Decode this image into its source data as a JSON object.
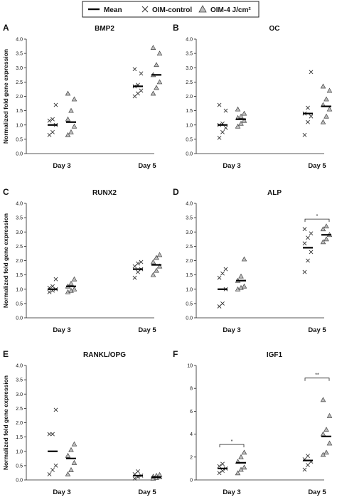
{
  "legend": {
    "mean_label": "Mean",
    "control_label": "OIM-control",
    "treated_label": "OIM-4 J/cm²"
  },
  "chart_data": [
    {
      "type": "scatter",
      "panel": "A",
      "title": "BMP2",
      "ylabel": "Normalized fold gene expression",
      "ylim": [
        0,
        4.0
      ],
      "yticks": [
        "0.0",
        "0.5",
        "1.0",
        "1.5",
        "2.0",
        "2.5",
        "3.0",
        "3.5",
        "4.0"
      ],
      "categories": [
        "Day 3",
        "Day 5"
      ],
      "series": [
        {
          "name": "OIM-control",
          "marker": "x",
          "values": [
            [
              0.65,
              0.75,
              1.0,
              1.15,
              1.2,
              1.7
            ],
            [
              2.0,
              2.1,
              2.2,
              2.35,
              2.4,
              2.8,
              2.95
            ]
          ]
        },
        {
          "name": "OIM-4 J/cm²",
          "marker": "triangle",
          "values": [
            [
              0.65,
              0.75,
              0.95,
              1.2,
              1.5,
              1.9,
              2.1
            ],
            [
              2.1,
              2.3,
              2.5,
              2.75,
              3.1,
              3.5,
              3.7
            ]
          ]
        }
      ],
      "means": [
        [
          1.0,
          1.1
        ],
        [
          2.35,
          2.75
        ]
      ],
      "significance": []
    },
    {
      "type": "scatter",
      "panel": "B",
      "title": "OC",
      "ylabel": "",
      "ylim": [
        0,
        4.0
      ],
      "yticks": [
        "0.0",
        "0.5",
        "1.0",
        "1.5",
        "2.0",
        "2.5",
        "3.0",
        "3.5",
        "4.0"
      ],
      "categories": [
        "Day 3",
        "Day 5"
      ],
      "series": [
        {
          "name": "OIM-control",
          "marker": "x",
          "values": [
            [
              0.55,
              0.75,
              0.9,
              1.0,
              1.05,
              1.5,
              1.7
            ],
            [
              0.65,
              1.1,
              1.3,
              1.4,
              1.6,
              2.85
            ]
          ]
        },
        {
          "name": "OIM-4 J/cm²",
          "marker": "triangle",
          "values": [
            [
              0.95,
              1.05,
              1.15,
              1.25,
              1.3,
              1.4,
              1.55
            ],
            [
              1.1,
              1.3,
              1.55,
              1.7,
              1.9,
              2.2,
              2.35
            ]
          ]
        }
      ],
      "means": [
        [
          1.0,
          1.2
        ],
        [
          1.4,
          1.65
        ]
      ],
      "significance": []
    },
    {
      "type": "scatter",
      "panel": "C",
      "title": "RUNX2",
      "ylabel": "Normalized fold gene expression",
      "ylim": [
        0,
        4.0
      ],
      "yticks": [
        "0.0",
        "0.5",
        "1.0",
        "1.5",
        "2.0",
        "2.5",
        "3.0",
        "3.5",
        "4.0"
      ],
      "categories": [
        "Day 3",
        "Day 5"
      ],
      "series": [
        {
          "name": "OIM-control",
          "marker": "x",
          "values": [
            [
              0.9,
              0.95,
              1.0,
              1.05,
              1.1,
              1.35
            ],
            [
              1.4,
              1.6,
              1.7,
              1.8,
              1.9,
              1.95
            ]
          ]
        },
        {
          "name": "OIM-4 J/cm²",
          "marker": "triangle",
          "values": [
            [
              0.9,
              0.95,
              1.0,
              1.1,
              1.2,
              1.35
            ],
            [
              1.5,
              1.65,
              1.8,
              1.95,
              2.1,
              2.2
            ]
          ]
        }
      ],
      "means": [
        [
          1.0,
          1.1
        ],
        [
          1.7,
          1.85
        ]
      ],
      "significance": []
    },
    {
      "type": "scatter",
      "panel": "D",
      "title": "ALP",
      "ylabel": "",
      "ylim": [
        0,
        4.0
      ],
      "yticks": [
        "0.0",
        "0.5",
        "1.0",
        "1.5",
        "2.0",
        "2.5",
        "3.0",
        "3.5",
        "4.0"
      ],
      "categories": [
        "Day 3",
        "Day 5"
      ],
      "series": [
        {
          "name": "OIM-control",
          "marker": "x",
          "values": [
            [
              0.4,
              0.5,
              1.0,
              1.4,
              1.55,
              1.7
            ],
            [
              1.6,
              2.0,
              2.3,
              2.6,
              2.8,
              2.95,
              3.1
            ]
          ]
        },
        {
          "name": "OIM-4 J/cm²",
          "marker": "triangle",
          "values": [
            [
              1.0,
              1.05,
              1.1,
              1.3,
              1.45,
              2.05
            ],
            [
              2.65,
              2.75,
              2.9,
              3.1,
              3.2
            ]
          ]
        }
      ],
      "means": [
        [
          1.0,
          1.3
        ],
        [
          2.45,
          2.9
        ]
      ],
      "significance": [
        {
          "category": "Day 5",
          "label": "*",
          "y": 3.45
        }
      ]
    },
    {
      "type": "scatter",
      "panel": "E",
      "title": "RANKL/OPG",
      "ylabel": "Normalized fold gene expression",
      "ylim": [
        0,
        4.0
      ],
      "yticks": [
        "0.0",
        "0.5",
        "1.0",
        "1.5",
        "2.0",
        "2.5",
        "3.0",
        "3.5",
        "4.0"
      ],
      "categories": [
        "Day 3",
        "Day 5"
      ],
      "series": [
        {
          "name": "OIM-control",
          "marker": "x",
          "values": [
            [
              0.2,
              0.35,
              0.5,
              1.6,
              1.6,
              2.45
            ],
            [
              0.05,
              0.1,
              0.15,
              0.2,
              0.3
            ]
          ]
        },
        {
          "name": "OIM-4 J/cm²",
          "marker": "triangle",
          "values": [
            [
              0.2,
              0.35,
              0.6,
              0.85,
              1.05,
              1.25
            ],
            [
              0.05,
              0.08,
              0.1,
              0.12,
              0.15,
              0.18
            ]
          ]
        }
      ],
      "means": [
        [
          1.0,
          0.75
        ],
        [
          0.15,
          0.1
        ]
      ],
      "significance": []
    },
    {
      "type": "scatter",
      "panel": "F",
      "title": "IGF1",
      "ylabel": "",
      "ylim": [
        0,
        10
      ],
      "yticks": [
        "0",
        "2",
        "4",
        "6",
        "8",
        "10"
      ],
      "categories": [
        "Day 3",
        "Day 5"
      ],
      "series": [
        {
          "name": "OIM-control",
          "marker": "x",
          "values": [
            [
              0.6,
              0.8,
              1.0,
              1.2,
              1.4
            ],
            [
              0.9,
              1.3,
              1.6,
              1.8,
              2.1
            ]
          ]
        },
        {
          "name": "OIM-4 J/cm²",
          "marker": "triangle",
          "values": [
            [
              0.6,
              0.9,
              1.1,
              1.6,
              2.0,
              2.4
            ],
            [
              2.2,
              2.4,
              3.2,
              4.0,
              4.4,
              5.6,
              7.0
            ]
          ]
        }
      ],
      "means": [
        [
          1.0,
          1.5
        ],
        [
          1.7,
          3.8
        ]
      ],
      "significance": [
        {
          "category": "Day 3",
          "label": "*",
          "y": 3.1
        },
        {
          "category": "Day 5",
          "label": "**",
          "y": 8.9
        }
      ]
    }
  ]
}
